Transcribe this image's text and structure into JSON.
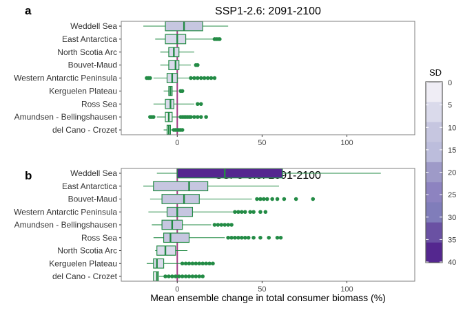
{
  "figure": {
    "xlabel": "Mean ensemble change in total consumer biomass (%)",
    "legend_title": "SD",
    "legend_ticks": [
      0,
      5,
      10,
      15,
      20,
      25,
      30,
      35,
      40
    ],
    "legend_colors": [
      "#efedf5",
      "#dadaeb",
      "#c6c6e0",
      "#bcbddc",
      "#9e9ac8",
      "#8d83c0",
      "#807dba",
      "#6a51a3",
      "#54278f"
    ],
    "box_stroke": "#238b45",
    "zero_line_color": "#a53d85",
    "panel_border": "#7f7f7f"
  },
  "chart_data": [
    {
      "type": "box",
      "panel_label": "a",
      "title": "SSP1-2.6: 2091-2100",
      "xlim": [
        -33,
        140
      ],
      "xticks": [
        0,
        50,
        100
      ],
      "regions": [
        {
          "name": "Weddell Sea",
          "wlo": -20,
          "q1": -7,
          "med": 4,
          "q3": 15,
          "whi": 30,
          "outliers": [],
          "sd": 12
        },
        {
          "name": "East Antarctica",
          "wlo": -13,
          "q1": -7,
          "med": 0,
          "q3": 5,
          "whi": 21,
          "outliers": [
            22,
            23,
            24,
            25
          ],
          "sd": 8
        },
        {
          "name": "North Scotia Arc",
          "wlo": -10,
          "q1": -5,
          "med": -2,
          "q3": 1,
          "whi": 10,
          "outliers": [],
          "sd": 5
        },
        {
          "name": "Bouvet-Maud",
          "wlo": -10,
          "q1": -5,
          "med": -1,
          "q3": 1,
          "whi": 8,
          "outliers": [
            11,
            12
          ],
          "sd": 5
        },
        {
          "name": "Western Antarctic Peninsula",
          "wlo": -14,
          "q1": -6,
          "med": -3,
          "q3": 0,
          "whi": 7,
          "outliers": [
            -18,
            -17,
            -16,
            8,
            10,
            12,
            14,
            16,
            18,
            20,
            22
          ],
          "sd": 7
        },
        {
          "name": "Kerguelen Plateau",
          "wlo": -8,
          "q1": -5,
          "med": -4,
          "q3": -3,
          "whi": 0,
          "outliers": [
            2,
            3
          ],
          "sd": 5
        },
        {
          "name": "Ross Sea",
          "wlo": -14,
          "q1": -7,
          "med": -4,
          "q3": -2,
          "whi": 10,
          "outliers": [
            12,
            14
          ],
          "sd": 5
        },
        {
          "name": "Amundsen - Bellingshausen",
          "wlo": -12,
          "q1": -7,
          "med": -5,
          "q3": -3,
          "whi": 1,
          "outliers": [
            -16,
            -15,
            -14,
            2,
            3,
            4,
            5,
            6,
            7,
            8,
            10,
            12,
            14,
            17
          ],
          "sd": 3
        },
        {
          "name": "del Cano - Crozet",
          "wlo": -8,
          "q1": -6,
          "med": -5,
          "q3": -4,
          "whi": -3,
          "outliers": [
            -2,
            -1,
            0,
            1,
            2,
            3
          ],
          "sd": 2
        }
      ]
    },
    {
      "type": "box",
      "panel_label": "b",
      "title": "SSP5-8.5: 2091-2100",
      "xlim": [
        -33,
        140
      ],
      "xticks": [
        0,
        50,
        100
      ],
      "regions": [
        {
          "name": "Weddell Sea",
          "wlo": -12,
          "q1": 0,
          "med": 28,
          "q3": 62,
          "whi": 120,
          "outliers": [],
          "sd": 37
        },
        {
          "name": "East Antarctica",
          "wlo": -20,
          "q1": -14,
          "med": 7,
          "q3": 18,
          "whi": 60,
          "outliers": [],
          "sd": 13
        },
        {
          "name": "Bouvet-Maud",
          "wlo": -16,
          "q1": -9,
          "med": 4,
          "q3": 13,
          "whi": 44,
          "outliers": [
            47,
            49,
            51,
            53,
            56,
            59,
            63,
            70,
            80
          ],
          "sd": 13
        },
        {
          "name": "Western Antarctic Peninsula",
          "wlo": -17,
          "q1": -6,
          "med": 0,
          "q3": 9,
          "whi": 33,
          "outliers": [
            34,
            36,
            38,
            40,
            43,
            45,
            49,
            52
          ],
          "sd": 11
        },
        {
          "name": "Amundsen - Bellingshausen",
          "wlo": -15,
          "q1": -9,
          "med": -3,
          "q3": 3,
          "whi": 20,
          "outliers": [
            22,
            24,
            26,
            28,
            30,
            32
          ],
          "sd": 11
        },
        {
          "name": "Ross Sea",
          "wlo": -14,
          "q1": -8,
          "med": -4,
          "q3": 7,
          "whi": 28,
          "outliers": [
            30,
            32,
            34,
            36,
            38,
            40,
            42,
            45,
            49,
            54,
            59,
            61
          ],
          "sd": 11
        },
        {
          "name": "North Scotia Arc",
          "wlo": -13,
          "q1": -12,
          "med": -7,
          "q3": -1,
          "whi": 6,
          "outliers": [],
          "sd": 7
        },
        {
          "name": "Kerguelen Plateau",
          "wlo": -18,
          "q1": -14,
          "med": -12,
          "q3": -8,
          "whi": 2,
          "outliers": [
            3,
            5,
            7,
            9,
            11,
            13,
            15,
            17,
            19,
            21
          ],
          "sd": 6
        },
        {
          "name": "del Cano - Crozet",
          "wlo": -14,
          "q1": -14,
          "med": -12,
          "q3": -11,
          "whi": -8,
          "outliers": [
            -7,
            -5,
            -3,
            -1,
            1,
            3,
            5,
            7,
            9,
            11,
            13,
            15
          ],
          "sd": 2
        }
      ]
    }
  ]
}
